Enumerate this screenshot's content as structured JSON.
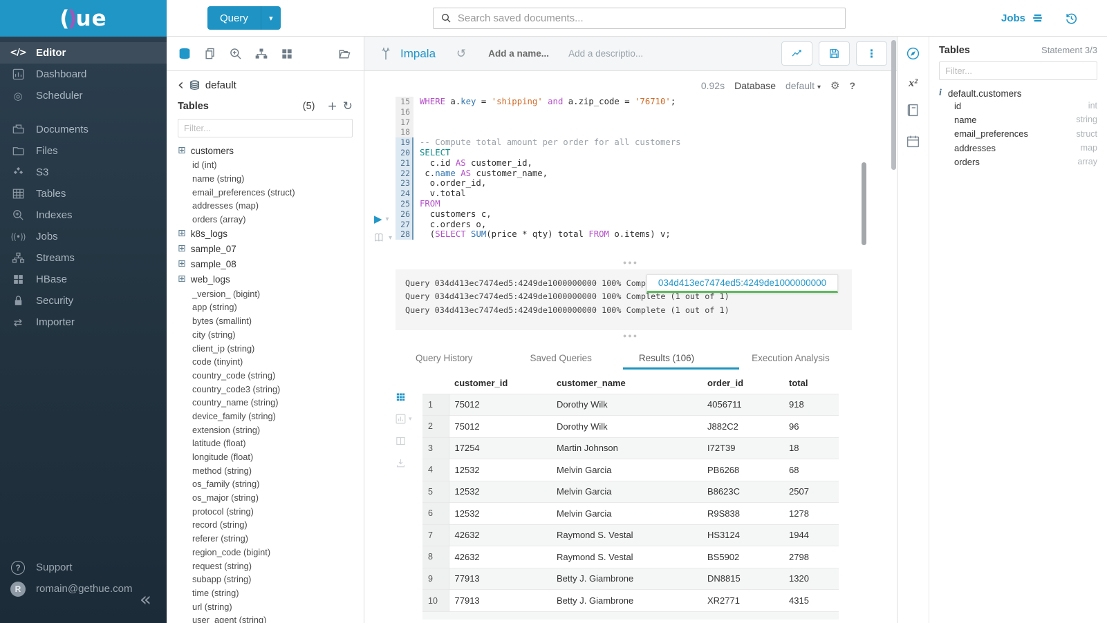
{
  "colors": {
    "accent": "#2196c9",
    "brand_blue": "#1f94c4",
    "success_green": "#5cb85c",
    "sidebar_dark": "#22333f"
  },
  "brand": {
    "logo_left": "(",
    "logo_paren": ")",
    "logo_rest": "ue"
  },
  "topbar": {
    "query_button": "Query",
    "search_placeholder": "Search saved documents...",
    "jobs_label": "Jobs"
  },
  "sidebar": {
    "items": [
      {
        "label": "Editor",
        "icon": "code",
        "active": true,
        "gap": false
      },
      {
        "label": "Dashboard",
        "icon": "dashboard",
        "active": false,
        "gap": false
      },
      {
        "label": "Scheduler",
        "icon": "scheduler",
        "active": false,
        "gap": false
      },
      {
        "label": "Documents",
        "icon": "documents",
        "active": false,
        "gap": true
      },
      {
        "label": "Files",
        "icon": "files",
        "active": false,
        "gap": false
      },
      {
        "label": "S3",
        "icon": "s3",
        "active": false,
        "gap": false
      },
      {
        "label": "Tables",
        "icon": "tables",
        "active": false,
        "gap": false
      },
      {
        "label": "Indexes",
        "icon": "indexes",
        "active": false,
        "gap": false
      },
      {
        "label": "Jobs",
        "icon": "jobs",
        "active": false,
        "gap": false
      },
      {
        "label": "Streams",
        "icon": "streams",
        "active": false,
        "gap": false
      },
      {
        "label": "HBase",
        "icon": "hbase",
        "active": false,
        "gap": false
      },
      {
        "label": "Security",
        "icon": "lock",
        "active": false,
        "gap": false
      },
      {
        "label": "Importer",
        "icon": "importer",
        "active": false,
        "gap": false
      }
    ],
    "support_label": "Support",
    "user_email": "romain@gethue.com",
    "collapse_glyph": "«"
  },
  "dbpanel": {
    "breadcrumb": "default",
    "section_title": "Tables",
    "count": "(5)",
    "filter_placeholder": "Filter...",
    "tables": [
      {
        "name": "customers",
        "columns": [
          "id (int)",
          "name (string)",
          "email_preferences (struct)",
          "addresses (map)",
          "orders (array)"
        ]
      },
      {
        "name": "k8s_logs",
        "columns": []
      },
      {
        "name": "sample_07",
        "columns": []
      },
      {
        "name": "sample_08",
        "columns": []
      },
      {
        "name": "web_logs",
        "columns": [
          "_version_ (bigint)",
          "app (string)",
          "bytes (smallint)",
          "city (string)",
          "client_ip (string)",
          "code (tinyint)",
          "country_code (string)",
          "country_code3 (string)",
          "country_name (string)",
          "device_family (string)",
          "extension (string)",
          "latitude (float)",
          "longitude (float)",
          "method (string)",
          "os_family (string)",
          "os_major (string)",
          "protocol (string)",
          "record (string)",
          "referer (string)",
          "region_code (bigint)",
          "request (string)",
          "subapp (string)",
          "time (string)",
          "url (string)",
          "user_agent (string)"
        ]
      }
    ]
  },
  "editor": {
    "engine": "Impala",
    "name_placeholder": "Add a name...",
    "description_placeholder": "Add a descriptio...",
    "exec_time": "0.92s",
    "database_label": "Database",
    "database_value": "default",
    "help_glyph": "?",
    "code": [
      {
        "n": 15,
        "hl": false,
        "tokens": [
          [
            "kw",
            "WHERE"
          ],
          [
            "d",
            " a."
          ],
          [
            "fn",
            "key"
          ],
          [
            "d",
            " = "
          ],
          [
            "str",
            "'shipping'"
          ],
          [
            "d",
            " "
          ],
          [
            "kw",
            "and"
          ],
          [
            "d",
            " a.zip_code = "
          ],
          [
            "str",
            "'76710'"
          ],
          [
            "d",
            ";"
          ]
        ]
      },
      {
        "n": 16,
        "hl": false,
        "tokens": []
      },
      {
        "n": 17,
        "hl": false,
        "tokens": []
      },
      {
        "n": 18,
        "hl": false,
        "tokens": []
      },
      {
        "n": 19,
        "hl": true,
        "tokens": [
          [
            "cm",
            "-- Compute total amount per order for all customers"
          ]
        ]
      },
      {
        "n": 20,
        "hl": true,
        "tokens": [
          [
            "sel",
            "SELECT"
          ]
        ]
      },
      {
        "n": 21,
        "hl": true,
        "tokens": [
          [
            "d",
            "  c.id "
          ],
          [
            "kw",
            "AS"
          ],
          [
            "d",
            " customer_id,"
          ]
        ]
      },
      {
        "n": 22,
        "hl": true,
        "tokens": [
          [
            "d",
            " c."
          ],
          [
            "fn",
            "name"
          ],
          [
            "d",
            " "
          ],
          [
            "kw",
            "AS"
          ],
          [
            "d",
            " customer_name,"
          ]
        ]
      },
      {
        "n": 23,
        "hl": true,
        "tokens": [
          [
            "d",
            "  o.order_id,"
          ]
        ]
      },
      {
        "n": 24,
        "hl": true,
        "tokens": [
          [
            "d",
            "  v.total"
          ]
        ]
      },
      {
        "n": 25,
        "hl": true,
        "tokens": [
          [
            "kw",
            "FROM"
          ]
        ]
      },
      {
        "n": 26,
        "hl": true,
        "tokens": [
          [
            "d",
            "  customers c,"
          ]
        ]
      },
      {
        "n": 27,
        "hl": true,
        "tokens": [
          [
            "d",
            "  c.orders o,"
          ]
        ]
      },
      {
        "n": 28,
        "hl": true,
        "tokens": [
          [
            "d",
            "  ("
          ],
          [
            "kw",
            "SELECT"
          ],
          [
            "d",
            " "
          ],
          [
            "fn",
            "SUM"
          ],
          [
            "d",
            "(price * qty) total "
          ],
          [
            "kw",
            "FROM"
          ],
          [
            "d",
            " o.items) v;"
          ]
        ]
      }
    ]
  },
  "logs": {
    "lines": [
      "Query 034d413ec7474ed5:4249de1000000000 100% Complete (1 out of 1)",
      "Query 034d413ec7474ed5:4249de1000000000 100% Complete (1 out of 1)",
      "Query 034d413ec7474ed5:4249de1000000000 100% Complete (1 out of 1)"
    ],
    "tooltip": "034d413ec7474ed5:4249de1000000000"
  },
  "tabs": [
    {
      "label": "Query History",
      "active": false
    },
    {
      "label": "Saved Queries",
      "active": false
    },
    {
      "label": "Results (106)",
      "active": true
    },
    {
      "label": "Execution Analysis",
      "active": false
    }
  ],
  "results": {
    "columns": [
      "customer_id",
      "customer_name",
      "order_id",
      "total"
    ],
    "rows": [
      [
        "1",
        "75012",
        "Dorothy Wilk",
        "4056711",
        "918"
      ],
      [
        "2",
        "75012",
        "Dorothy Wilk",
        "J882C2",
        "96"
      ],
      [
        "3",
        "17254",
        "Martin Johnson",
        "I72T39",
        "18"
      ],
      [
        "4",
        "12532",
        "Melvin Garcia",
        "PB6268",
        "68"
      ],
      [
        "5",
        "12532",
        "Melvin Garcia",
        "B8623C",
        "2507"
      ],
      [
        "6",
        "12532",
        "Melvin Garcia",
        "R9S838",
        "1278"
      ],
      [
        "7",
        "42632",
        "Raymond S. Vestal",
        "HS3124",
        "1944"
      ],
      [
        "8",
        "42632",
        "Raymond S. Vestal",
        "BS5902",
        "2798"
      ],
      [
        "9",
        "77913",
        "Betty J. Giambrone",
        "DN8815",
        "1320"
      ],
      [
        "10",
        "77913",
        "Betty J. Giambrone",
        "XR2771",
        "4315"
      ]
    ]
  },
  "rightpanel": {
    "title": "Tables",
    "statement": "Statement 3/3",
    "filter_placeholder": "Filter...",
    "table_name": "default.customers",
    "columns": [
      {
        "name": "id",
        "type": "int"
      },
      {
        "name": "name",
        "type": "string"
      },
      {
        "name": "email_preferences",
        "type": "struct"
      },
      {
        "name": "addresses",
        "type": "map"
      },
      {
        "name": "orders",
        "type": "array"
      }
    ]
  }
}
